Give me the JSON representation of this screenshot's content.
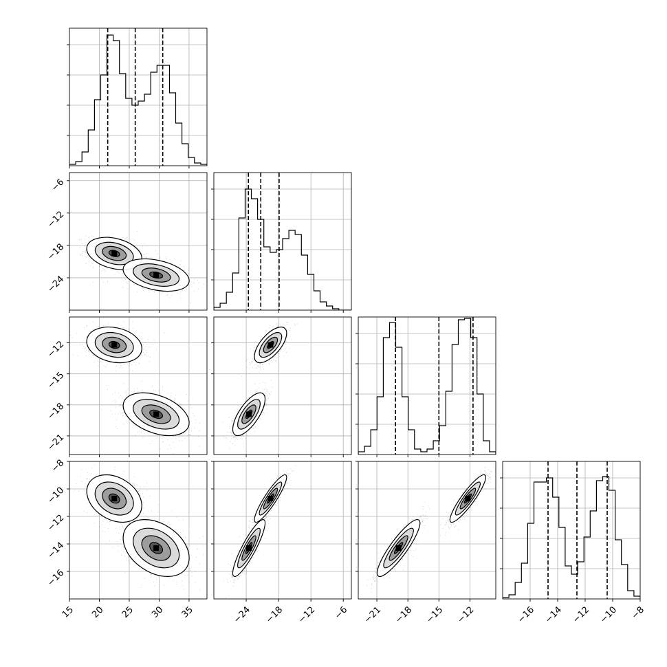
{
  "chart_data": {
    "type": "corner",
    "title": "",
    "colors": {
      "hist": "#000000",
      "quantile": "#000000",
      "grid": "#b0b0b0",
      "points": "#000000"
    },
    "params": [
      {
        "range": [
          15,
          38
        ],
        "ticks": [
          15,
          20,
          25,
          30,
          35
        ],
        "quantiles": [
          21.4,
          26.0,
          30.6
        ]
      },
      {
        "range": [
          -30,
          -4.5
        ],
        "ticks": [
          -24,
          -18,
          -12,
          -6
        ],
        "quantiles": [
          -23.6,
          -21.3,
          -17.9
        ]
      },
      {
        "range": [
          -22.8,
          -9.5
        ],
        "ticks": [
          -21,
          -18,
          -15,
          -12
        ],
        "quantiles": [
          -19.2,
          -15.0,
          -11.7
        ]
      },
      {
        "range": [
          -18,
          -8
        ],
        "ticks": [
          -16,
          -14,
          -12,
          -10,
          -8
        ],
        "quantiles": [
          -14.7,
          -12.6,
          -10.4
        ]
      }
    ],
    "y_ticks_2d": [
      [],
      [
        -24,
        -18,
        -12,
        -6
      ],
      [
        -21,
        -18,
        -15,
        -12
      ],
      [
        -16,
        -14,
        -12,
        -10,
        -8
      ]
    ],
    "histograms": [
      {
        "bins": 22,
        "values": [
          0.01,
          0.03,
          0.1,
          0.26,
          0.48,
          0.66,
          0.95,
          0.91,
          0.67,
          0.49,
          0.44,
          0.47,
          0.52,
          0.68,
          0.73,
          0.73,
          0.53,
          0.31,
          0.16,
          0.06,
          0.02,
          0.01
        ]
      },
      {
        "bins": 22,
        "values": [
          0.02,
          0.05,
          0.13,
          0.27,
          0.67,
          0.88,
          0.81,
          0.66,
          0.46,
          0.42,
          0.44,
          0.52,
          0.58,
          0.55,
          0.4,
          0.26,
          0.14,
          0.06,
          0.03,
          0.01,
          0.0,
          0.0
        ]
      },
      {
        "bins": 22,
        "values": [
          0.02,
          0.06,
          0.18,
          0.42,
          0.85,
          0.96,
          0.78,
          0.42,
          0.18,
          0.04,
          0.02,
          0.04,
          0.1,
          0.21,
          0.46,
          0.8,
          0.98,
          0.99,
          0.85,
          0.44,
          0.1,
          0.02
        ]
      },
      {
        "bins": 22,
        "values": [
          0.01,
          0.03,
          0.12,
          0.26,
          0.55,
          0.85,
          0.85,
          0.88,
          0.74,
          0.52,
          0.24,
          0.18,
          0.27,
          0.45,
          0.64,
          0.86,
          0.89,
          0.79,
          0.43,
          0.25,
          0.06,
          0.02
        ]
      }
    ],
    "modes": [
      {
        "mean": [
          22.5,
          -19.5,
          -12.2,
          -10.7
        ],
        "sd": [
          2.0,
          1.3,
          0.75,
          0.75
        ],
        "corr": {
          "0-1": -0.3,
          "0-2": -0.2,
          "0-3": -0.3,
          "1-2": 0.65,
          "1-3": 0.9,
          "2-3": 0.9
        }
      },
      {
        "mean": [
          29.5,
          -23.5,
          -18.9,
          -14.3
        ],
        "sd": [
          2.4,
          1.3,
          0.9,
          0.9
        ],
        "corr": {
          "0-1": -0.35,
          "0-2": -0.4,
          "0-3": -0.35,
          "1-2": 0.7,
          "1-3": 0.88,
          "2-3": 0.88
        }
      }
    ]
  }
}
